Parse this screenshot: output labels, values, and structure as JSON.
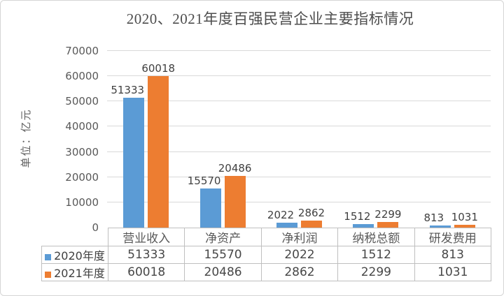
{
  "chart_data": {
    "type": "bar",
    "title": "2020、2021年度百强民营企业主要指标情况",
    "ylabel": "单位：亿元",
    "categories": [
      "营业收入",
      "净资产",
      "净利润",
      "纳税总额",
      "研发费用"
    ],
    "series": [
      {
        "name": "2020年度",
        "color": "#5B9BD5",
        "values": [
          51333,
          15570,
          2022,
          1512,
          813
        ]
      },
      {
        "name": "2021年度",
        "color": "#ED7D31",
        "values": [
          60018,
          20486,
          2862,
          2299,
          1031
        ]
      }
    ],
    "ylim": [
      0,
      70000
    ],
    "yticks": [
      0,
      10000,
      20000,
      30000,
      40000,
      50000,
      60000,
      70000
    ],
    "grid": true,
    "legend_position": "table-left-rows",
    "data_labels": true,
    "colors": {
      "grid": "#D9D9D9",
      "axis_text": "#595959",
      "label_text": "#404040",
      "table_border": "#BFBFBF",
      "title_text": "#4d4d4d"
    }
  }
}
